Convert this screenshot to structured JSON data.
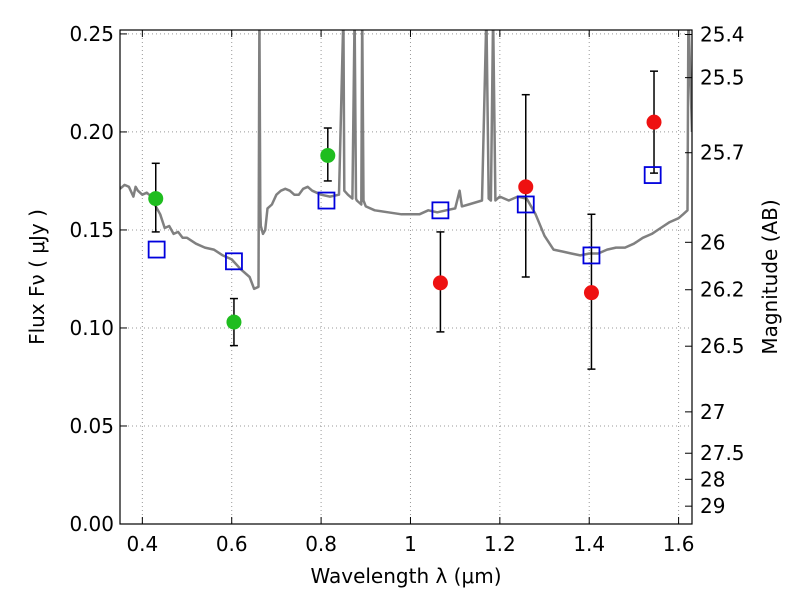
{
  "chart_data": {
    "type": "scatter",
    "xlabel": "Wavelength  λ (μm)",
    "ylabel_left": "Flux  Fν  ( μJy )",
    "ylabel_right": "Magnitude (AB)",
    "xlim": [
      0.35,
      1.63
    ],
    "ylim": [
      0.0,
      0.252
    ],
    "grid": true,
    "x_ticks": [
      0.4,
      0.6,
      0.8,
      1.0,
      1.2,
      1.4,
      1.6
    ],
    "x_tick_labels": [
      "0.4",
      "0.6",
      "0.8",
      "1",
      "1.2",
      "1.4",
      "1.6"
    ],
    "y_ticks": [
      0.0,
      0.05,
      0.1,
      0.15,
      0.2,
      0.25
    ],
    "y_tick_labels": [
      "0.00",
      "0.05",
      "0.10",
      "0.15",
      "0.20",
      "0.25"
    ],
    "right_ticks": [
      {
        "label": "25.4",
        "flux": 0.2497
      },
      {
        "label": "25.5",
        "flux": 0.2277
      },
      {
        "label": "25.7",
        "flux": 0.1894
      },
      {
        "label": "26",
        "flux": 0.1437
      },
      {
        "label": "26.2",
        "flux": 0.1195
      },
      {
        "label": "26.5",
        "flux": 0.0907
      },
      {
        "label": "27",
        "flux": 0.0572
      },
      {
        "label": "27.5",
        "flux": 0.0361
      },
      {
        "label": "28",
        "flux": 0.0228
      },
      {
        "label": "29",
        "flux": 0.0091
      }
    ],
    "colors": {
      "green": "#1fbd1f",
      "red": "#ee1111",
      "squares": "#0000dd",
      "spectrum": "#808080",
      "error_bars": "#000000"
    },
    "series": [
      {
        "marker": "circle-green",
        "points": [
          {
            "x": 0.43,
            "y": 0.166,
            "yerr": [
              0.149,
              0.184
            ]
          },
          {
            "x": 0.605,
            "y": 0.103,
            "yerr": [
              0.091,
              0.115
            ]
          },
          {
            "x": 0.815,
            "y": 0.188,
            "yerr": [
              0.175,
              0.202
            ]
          }
        ]
      },
      {
        "marker": "circle-red",
        "points": [
          {
            "x": 1.067,
            "y": 0.123,
            "yerr": [
              0.098,
              0.149
            ]
          },
          {
            "x": 1.258,
            "y": 0.172,
            "yerr": [
              0.126,
              0.219
            ]
          },
          {
            "x": 1.405,
            "y": 0.118,
            "yerr": [
              0.079,
              0.158
            ]
          },
          {
            "x": 1.545,
            "y": 0.205,
            "yerr": [
              0.179,
              0.231
            ]
          }
        ]
      },
      {
        "marker": "square-open-blue",
        "points": [
          {
            "x": 0.432,
            "y": 0.14
          },
          {
            "x": 0.605,
            "y": 0.134
          },
          {
            "x": 0.812,
            "y": 0.165
          },
          {
            "x": 1.067,
            "y": 0.16
          },
          {
            "x": 1.258,
            "y": 0.163
          },
          {
            "x": 1.405,
            "y": 0.137
          },
          {
            "x": 1.542,
            "y": 0.178
          }
        ]
      }
    ],
    "spectrum": [
      [
        0.35,
        0.171
      ],
      [
        0.36,
        0.173
      ],
      [
        0.37,
        0.172
      ],
      [
        0.38,
        0.167
      ],
      [
        0.385,
        0.172
      ],
      [
        0.39,
        0.17
      ],
      [
        0.4,
        0.168
      ],
      [
        0.41,
        0.169
      ],
      [
        0.42,
        0.167
      ],
      [
        0.43,
        0.162
      ],
      [
        0.44,
        0.158
      ],
      [
        0.45,
        0.151
      ],
      [
        0.46,
        0.152
      ],
      [
        0.47,
        0.148
      ],
      [
        0.48,
        0.149
      ],
      [
        0.49,
        0.146
      ],
      [
        0.5,
        0.146
      ],
      [
        0.52,
        0.143
      ],
      [
        0.54,
        0.141
      ],
      [
        0.56,
        0.14
      ],
      [
        0.58,
        0.137
      ],
      [
        0.6,
        0.135
      ],
      [
        0.62,
        0.13
      ],
      [
        0.64,
        0.126
      ],
      [
        0.65,
        0.12
      ],
      [
        0.66,
        0.121
      ],
      [
        0.662,
        0.26
      ],
      [
        0.664,
        0.16
      ],
      [
        0.665,
        0.152
      ],
      [
        0.67,
        0.148
      ],
      [
        0.675,
        0.15
      ],
      [
        0.68,
        0.161
      ],
      [
        0.69,
        0.163
      ],
      [
        0.7,
        0.168
      ],
      [
        0.71,
        0.17
      ],
      [
        0.72,
        0.171
      ],
      [
        0.73,
        0.17
      ],
      [
        0.74,
        0.168
      ],
      [
        0.75,
        0.168
      ],
      [
        0.76,
        0.171
      ],
      [
        0.77,
        0.172
      ],
      [
        0.78,
        0.17
      ],
      [
        0.8,
        0.168
      ],
      [
        0.82,
        0.167
      ],
      [
        0.84,
        0.168
      ],
      [
        0.85,
        0.26
      ],
      [
        0.852,
        0.17
      ],
      [
        0.86,
        0.168
      ],
      [
        0.87,
        0.166
      ],
      [
        0.875,
        0.26
      ],
      [
        0.878,
        0.166
      ],
      [
        0.88,
        0.165
      ],
      [
        0.89,
        0.163
      ],
      [
        0.892,
        0.26
      ],
      [
        0.895,
        0.165
      ],
      [
        0.9,
        0.162
      ],
      [
        0.92,
        0.16
      ],
      [
        0.95,
        0.159
      ],
      [
        0.98,
        0.158
      ],
      [
        1.0,
        0.158
      ],
      [
        1.02,
        0.158
      ],
      [
        1.04,
        0.16
      ],
      [
        1.06,
        0.159
      ],
      [
        1.08,
        0.16
      ],
      [
        1.1,
        0.161
      ],
      [
        1.11,
        0.17
      ],
      [
        1.115,
        0.162
      ],
      [
        1.13,
        0.163
      ],
      [
        1.16,
        0.165
      ],
      [
        1.17,
        0.26
      ],
      [
        1.175,
        0.166
      ],
      [
        1.18,
        0.165
      ],
      [
        1.185,
        0.26
      ],
      [
        1.19,
        0.165
      ],
      [
        1.2,
        0.167
      ],
      [
        1.22,
        0.165
      ],
      [
        1.24,
        0.167
      ],
      [
        1.26,
        0.166
      ],
      [
        1.28,
        0.158
      ],
      [
        1.3,
        0.147
      ],
      [
        1.32,
        0.14
      ],
      [
        1.34,
        0.139
      ],
      [
        1.36,
        0.138
      ],
      [
        1.38,
        0.137
      ],
      [
        1.4,
        0.138
      ],
      [
        1.42,
        0.138
      ],
      [
        1.44,
        0.14
      ],
      [
        1.46,
        0.141
      ],
      [
        1.48,
        0.141
      ],
      [
        1.5,
        0.143
      ],
      [
        1.52,
        0.146
      ],
      [
        1.54,
        0.148
      ],
      [
        1.56,
        0.151
      ],
      [
        1.58,
        0.154
      ],
      [
        1.6,
        0.156
      ],
      [
        1.61,
        0.158
      ],
      [
        1.62,
        0.16
      ],
      [
        1.622,
        0.26
      ],
      [
        1.63,
        0.2
      ]
    ]
  }
}
